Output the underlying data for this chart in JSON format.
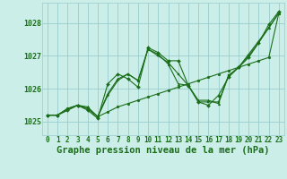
{
  "background_color": "#cceee8",
  "grid_color": "#99cccc",
  "line_color": "#1a6e1a",
  "xlabel": "Graphe pression niveau de la mer (hPa)",
  "xlim": [
    -0.5,
    23.5
  ],
  "ylim": [
    1024.6,
    1028.6
  ],
  "yticks": [
    1025,
    1026,
    1027,
    1028
  ],
  "xticks": [
    0,
    1,
    2,
    3,
    4,
    5,
    6,
    7,
    8,
    9,
    10,
    11,
    12,
    13,
    14,
    15,
    16,
    17,
    18,
    19,
    20,
    21,
    22,
    23
  ],
  "series": [
    [
      1025.2,
      1025.2,
      1025.4,
      1025.5,
      1025.45,
      1025.15,
      1025.85,
      1026.3,
      1026.45,
      1026.25,
      1027.2,
      1027.05,
      1026.75,
      1026.15,
      1026.1,
      1025.65,
      1025.65,
      1025.55,
      1026.4,
      1026.65,
      1027.05,
      1027.45,
      1027.85,
      1028.3
    ],
    [
      1025.2,
      1025.2,
      1025.35,
      1025.5,
      1025.35,
      1025.1,
      1026.15,
      1026.45,
      1026.3,
      1026.05,
      1027.25,
      1027.1,
      1026.85,
      1026.85,
      1026.1,
      1025.6,
      1025.5,
      1025.8,
      1026.35,
      1026.65,
      1026.95,
      1027.4,
      1027.95,
      1028.35
    ],
    [
      1025.2,
      1025.2,
      1025.35,
      1025.5,
      1025.4,
      1025.15,
      1025.8,
      1026.25,
      1026.45,
      1026.25,
      1027.2,
      1027.0,
      1026.8,
      1026.45,
      1026.1,
      1025.6,
      1025.6,
      1025.6,
      1026.4,
      1026.65,
      1027.0,
      1027.4,
      1027.85,
      1028.3
    ],
    [
      1025.2,
      1025.2,
      1025.4,
      1025.5,
      1025.4,
      1025.15,
      1025.3,
      1025.45,
      1025.55,
      1025.65,
      1025.75,
      1025.85,
      1025.95,
      1026.05,
      1026.15,
      1026.25,
      1026.35,
      1026.45,
      1026.55,
      1026.65,
      1026.75,
      1026.85,
      1026.95,
      1028.3
    ]
  ],
  "tick_fontsize": 5.5,
  "label_fontsize": 7.5
}
